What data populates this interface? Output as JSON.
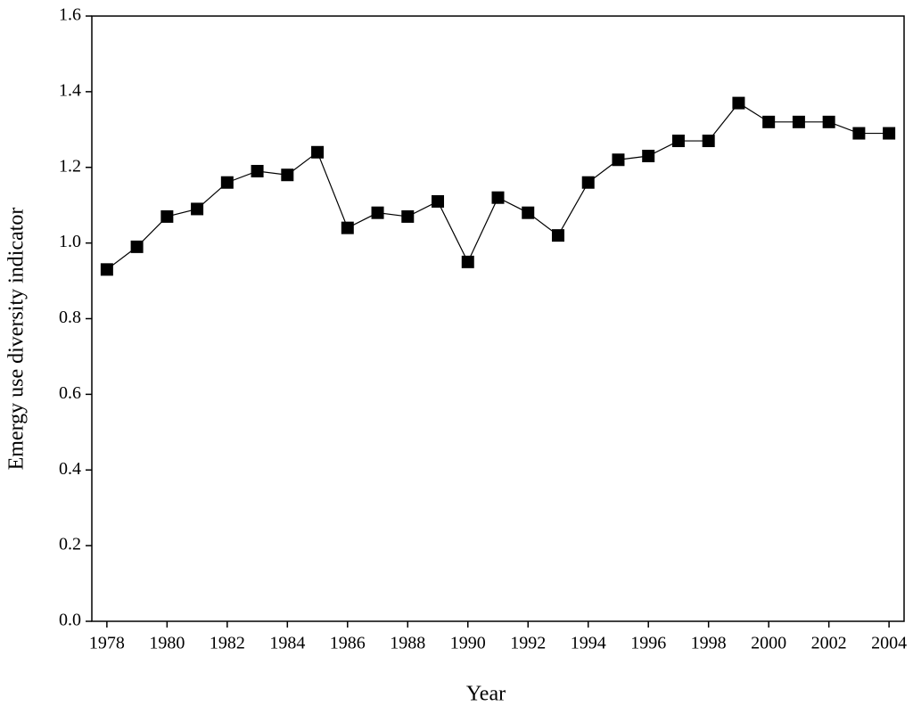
{
  "chart_data": {
    "type": "line",
    "x_label": "Year",
    "y_label": "Emergy use diversity indicator",
    "x": [
      1978,
      1979,
      1980,
      1981,
      1982,
      1983,
      1984,
      1985,
      1986,
      1987,
      1988,
      1989,
      1990,
      1991,
      1992,
      1993,
      1994,
      1995,
      1996,
      1997,
      1998,
      1999,
      2000,
      2001,
      2002,
      2003,
      2004
    ],
    "series": [
      {
        "color": "#000000",
        "marker": "square",
        "values": [
          0.93,
          0.99,
          1.07,
          1.09,
          1.16,
          1.19,
          1.18,
          1.24,
          1.04,
          1.08,
          1.07,
          1.11,
          0.95,
          1.12,
          1.08,
          1.02,
          1.16,
          1.22,
          1.23,
          1.27,
          1.27,
          1.37,
          1.32,
          1.32,
          1.32,
          1.29,
          1.29
        ]
      }
    ],
    "xlim": [
      1977.5,
      2004.5
    ],
    "xticks": [
      1978,
      1980,
      1982,
      1984,
      1986,
      1988,
      1990,
      1992,
      1994,
      1996,
      1998,
      2000,
      2002,
      2004
    ],
    "ylim": [
      0,
      1.6
    ],
    "yticks": [
      {
        "value": 0,
        "label": "0.0"
      },
      0.2,
      0.4,
      0.6,
      0.8,
      {
        "value": 1,
        "label": "1.0"
      },
      1.2,
      1.4,
      1.6
    ],
    "grid": false
  }
}
